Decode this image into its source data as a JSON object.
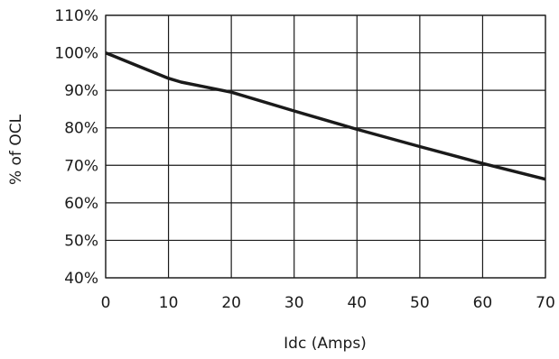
{
  "chart_data": {
    "type": "line",
    "title": "",
    "xlabel": "Idc (Amps)",
    "ylabel": "% of OCL",
    "xlim": [
      0,
      70
    ],
    "ylim": [
      40,
      110
    ],
    "x_ticks": [
      0,
      10,
      20,
      30,
      40,
      50,
      60,
      70
    ],
    "x_tick_labels": [
      "0",
      "10",
      "20",
      "30",
      "40",
      "50",
      "60",
      "70"
    ],
    "y_ticks": [
      40,
      50,
      60,
      70,
      80,
      90,
      100,
      110
    ],
    "y_tick_labels": [
      "40%",
      "50%",
      "60%",
      "70%",
      "80%",
      "90%",
      "100%",
      "110%"
    ],
    "grid": true,
    "legend": "none",
    "line_color": "#1a1a1a",
    "series": [
      {
        "x": [
          0,
          5,
          10,
          12,
          15,
          20,
          30,
          40,
          50,
          60,
          70
        ],
        "y": [
          100,
          96.6,
          93.2,
          92.2,
          91.2,
          89.5,
          84.5,
          79.6,
          75,
          70.5,
          66.3
        ]
      }
    ]
  }
}
